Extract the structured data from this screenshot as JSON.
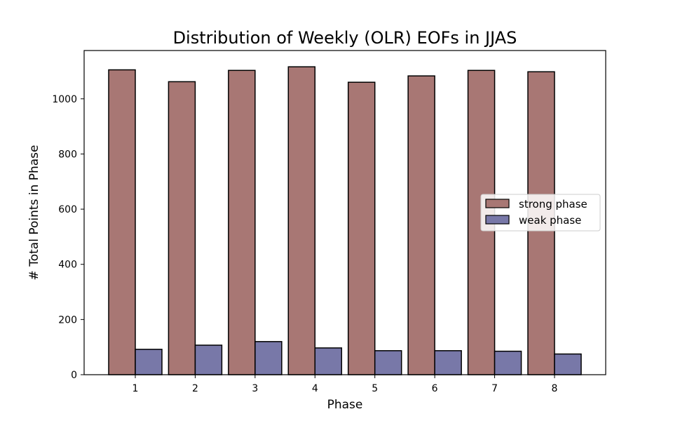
{
  "chart_data": {
    "type": "bar",
    "title": "Distribution of Weekly (OLR) EOFs in JJAS",
    "xlabel": "Phase",
    "ylabel": "# Total Points in Phase",
    "categories": [
      "1",
      "2",
      "3",
      "4",
      "5",
      "6",
      "7",
      "8"
    ],
    "series": [
      {
        "name": "strong phase",
        "color": "#a87774",
        "values": [
          1105,
          1062,
          1103,
          1116,
          1060,
          1083,
          1103,
          1098
        ]
      },
      {
        "name": "weak phase",
        "color": "#7878a8",
        "values": [
          92,
          107,
          120,
          97,
          87,
          87,
          85,
          75
        ]
      }
    ],
    "ylim": [
      0,
      1175
    ],
    "yticks": [
      0,
      200,
      400,
      600,
      800,
      1000
    ],
    "grid": false,
    "legend_position": "center-right"
  }
}
